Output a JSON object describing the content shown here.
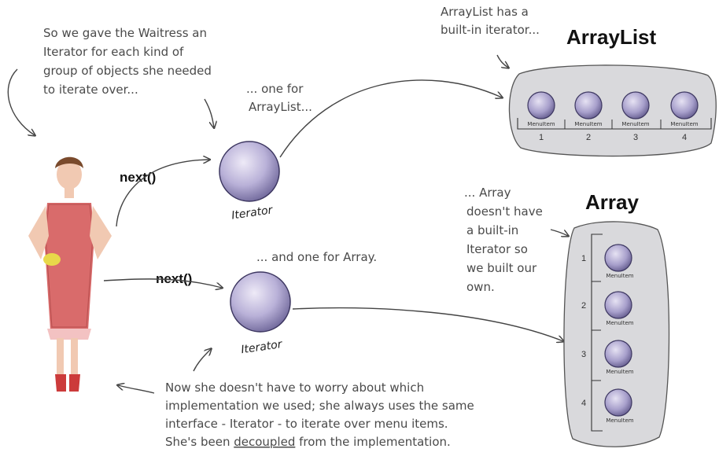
{
  "notes": {
    "waitress_note": [
      "So we gave the Waitress an",
      "Iterator for each kind of",
      "group of objects she needed",
      "to iterate over..."
    ],
    "one_for_arraylist": [
      "... one for",
      "ArrayList..."
    ],
    "arraylist_builtin": [
      "ArrayList has a",
      "built-in iterator..."
    ],
    "one_for_array": "... and one for Array.",
    "array_no_builtin": [
      "... Array",
      "doesn't have",
      "a built-in",
      "Iterator so",
      "we built our",
      "own."
    ],
    "bottom_note": [
      "Now she doesn't have to worry about which",
      "implementation we used; she always uses the same",
      "interface - Iterator - to iterate over menu items."
    ],
    "bottom_last_prefix": "She's been ",
    "bottom_last_underlined": "decoupled",
    "bottom_last_suffix": " from the implementation."
  },
  "calls": {
    "next_top": "next()",
    "next_bottom": "next()"
  },
  "iterators": {
    "top_label": "Iterator",
    "bottom_label": "Iterator"
  },
  "arraylist": {
    "title": "ArrayList",
    "item_label": "MenuItem",
    "indices": [
      "1",
      "2",
      "3",
      "4"
    ]
  },
  "array": {
    "title": "Array",
    "item_label": "MenuItem",
    "indices": [
      "1",
      "2",
      "3",
      "4"
    ]
  },
  "colors": {
    "sphere": "#8f86b8",
    "container": "#d8d8da",
    "ink": "#444444"
  }
}
